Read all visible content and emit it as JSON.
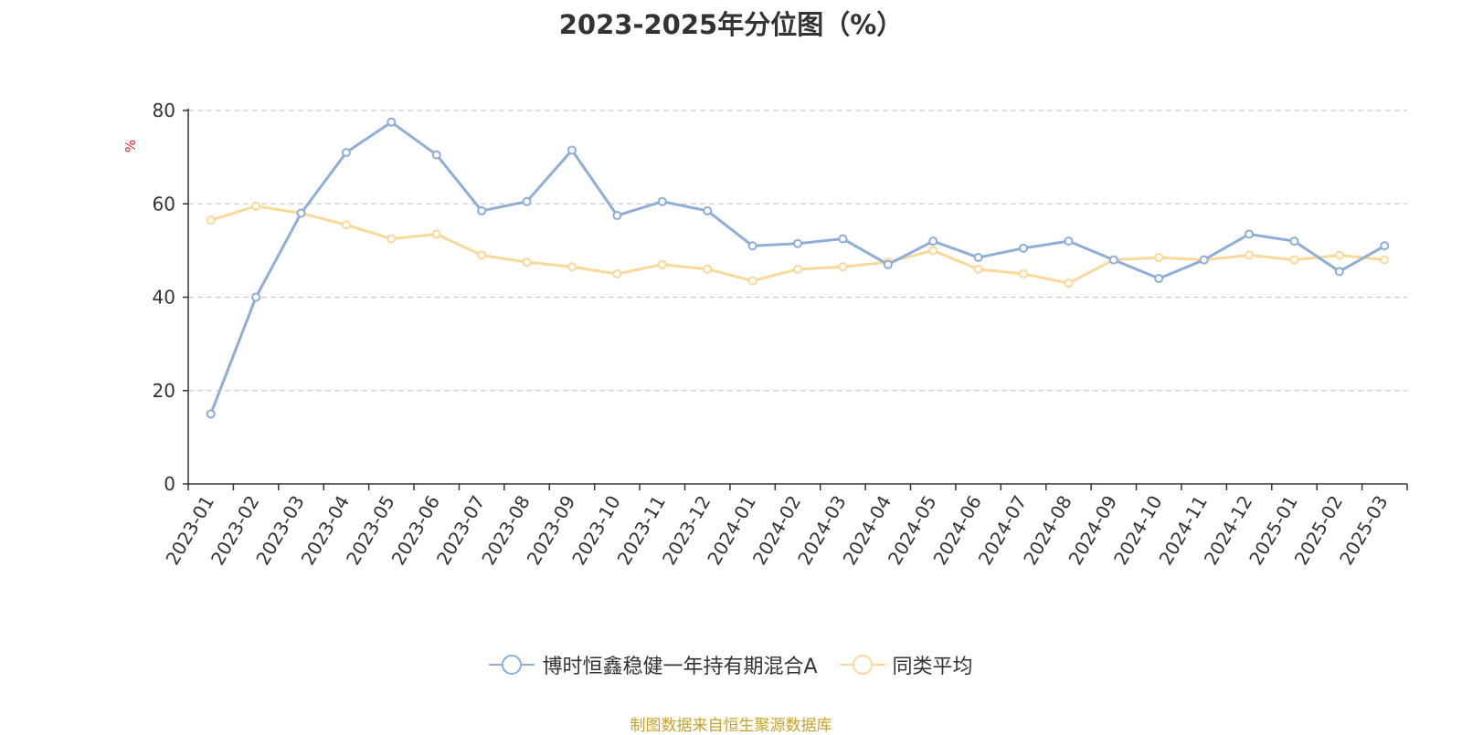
{
  "chart_data": {
    "type": "line",
    "title": "2023-2025年分位图（%）",
    "ylabel": "%",
    "xlabel": "",
    "ylim": [
      0,
      80
    ],
    "yticks": [
      0,
      20,
      40,
      60,
      80
    ],
    "grid": true,
    "legend_position": "bottom",
    "categories": [
      "2023-01",
      "2023-02",
      "2023-03",
      "2023-04",
      "2023-05",
      "2023-06",
      "2023-07",
      "2023-08",
      "2023-09",
      "2023-10",
      "2023-11",
      "2023-12",
      "2024-01",
      "2024-02",
      "2024-03",
      "2024-04",
      "2024-05",
      "2024-06",
      "2024-07",
      "2024-08",
      "2024-09",
      "2024-10",
      "2024-11",
      "2024-12",
      "2025-01",
      "2025-02",
      "2025-03"
    ],
    "series": [
      {
        "name": "博时恒鑫稳健一年持有期混合A",
        "color": "#8eadd8",
        "values": [
          15,
          40,
          58,
          71,
          77.5,
          70.5,
          58.5,
          60.5,
          71.5,
          57.5,
          60.5,
          58.5,
          51,
          51.5,
          52.5,
          47,
          52,
          48.5,
          50.5,
          52,
          48,
          44,
          48,
          53.5,
          52,
          45.5,
          51
        ]
      },
      {
        "name": "同类平均",
        "color": "#f9d898",
        "values": [
          56.5,
          59.5,
          58,
          55.5,
          52.5,
          53.5,
          49,
          47.5,
          46.5,
          45,
          47,
          46,
          43.5,
          46,
          46.5,
          47.5,
          50,
          46,
          45,
          43,
          48,
          48.5,
          48,
          49,
          48,
          49,
          48
        ]
      }
    ]
  },
  "footer": {
    "source": "制图数据来自恒生聚源数据库"
  }
}
